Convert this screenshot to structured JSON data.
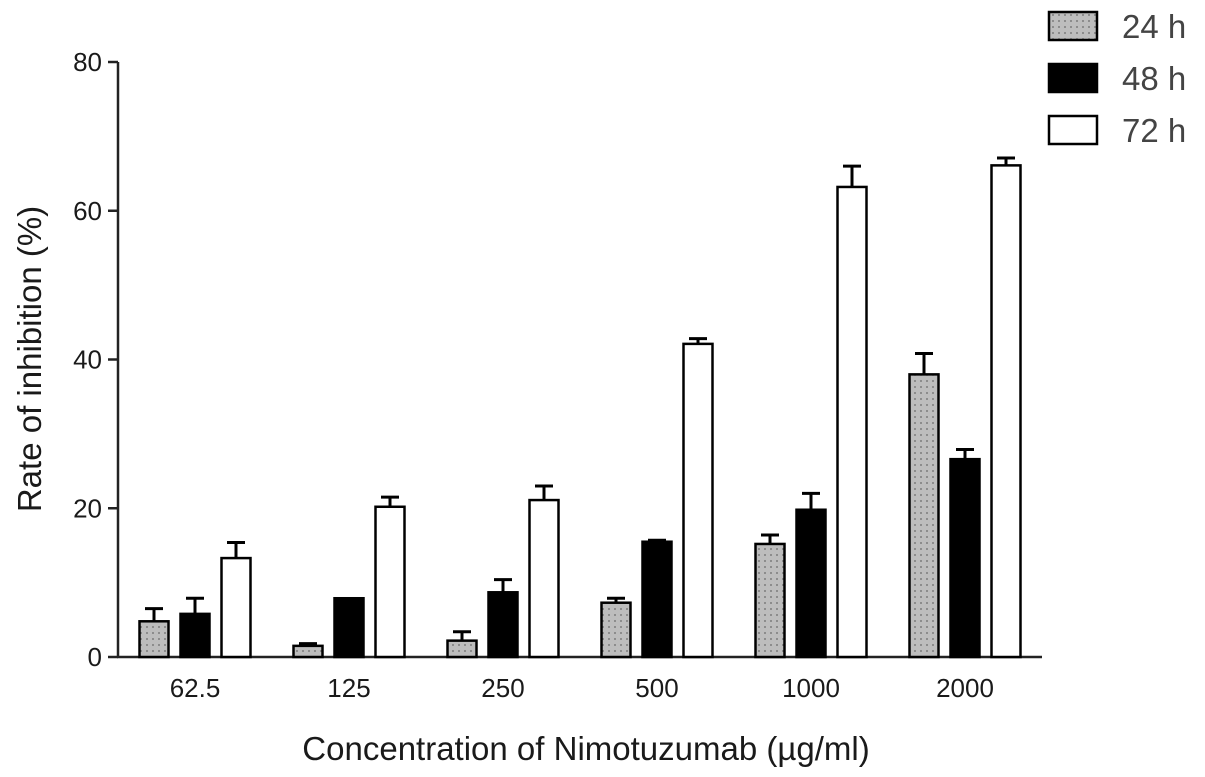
{
  "chart_data": {
    "type": "bar",
    "title": "",
    "xlabel": "Concentration of Nimotuzumab (µg/ml)",
    "ylabel": "Rate of inhibition (%)",
    "categories": [
      "62.5",
      "125",
      "250",
      "500",
      "1000",
      "2000"
    ],
    "ylim": [
      0,
      80
    ],
    "yticks": [
      "0",
      "20",
      "40",
      "60",
      "80"
    ],
    "grid": false,
    "legend_position": "top-right",
    "series": [
      {
        "name": "24 h",
        "values": [
          4.8,
          1.5,
          2.2,
          7.3,
          15.2,
          38.0
        ],
        "errors": [
          1.7,
          0.3,
          1.2,
          0.6,
          1.2,
          2.8
        ],
        "fill": "#bdbdbd",
        "pattern": "dotted"
      },
      {
        "name": "48 h",
        "values": [
          5.8,
          7.9,
          8.7,
          15.5,
          19.8,
          26.6
        ],
        "errors": [
          2.1,
          0.0,
          1.7,
          0.2,
          2.2,
          1.3
        ],
        "fill": "#000000",
        "pattern": "solid"
      },
      {
        "name": "72 h",
        "values": [
          13.3,
          20.2,
          21.1,
          42.1,
          63.2,
          66.1
        ],
        "errors": [
          2.1,
          1.3,
          1.9,
          0.7,
          2.8,
          1.0
        ],
        "fill": "#ffffff",
        "pattern": "solid"
      }
    ]
  }
}
